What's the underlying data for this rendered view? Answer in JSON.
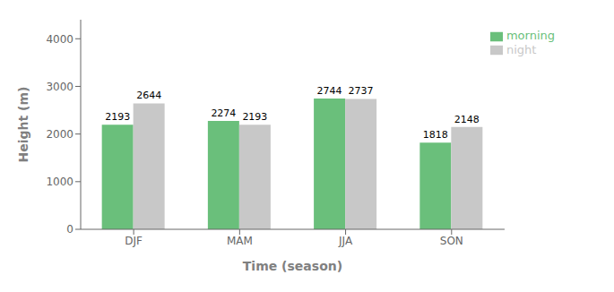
{
  "chart_data": {
    "type": "bar",
    "categories": [
      "DJF",
      "MAM",
      "JJA",
      "SON"
    ],
    "series": [
      {
        "name": "morning",
        "color": "#6abf7b",
        "values": [
          2193,
          2274,
          2744,
          1818
        ]
      },
      {
        "name": "night",
        "color": "#c8c8c8",
        "values": [
          2644,
          2193,
          2737,
          2148
        ]
      }
    ],
    "xlabel": "Time (season)",
    "ylabel": "Height (m)",
    "ylim": [
      0,
      4400
    ],
    "yticks": [
      0,
      1000,
      2000,
      3000,
      4000
    ],
    "legend": "upper right",
    "data_labels": true,
    "grid": false
  }
}
